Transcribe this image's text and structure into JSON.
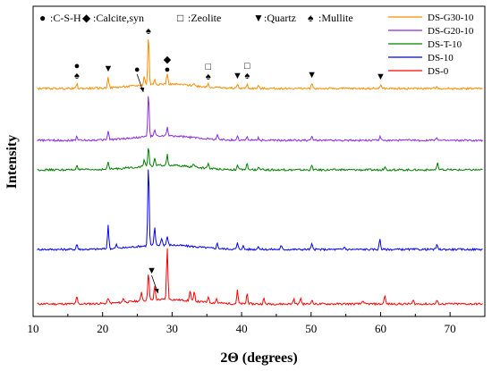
{
  "chart_data": {
    "type": "line",
    "title": "",
    "xlabel": "2Θ (degrees)",
    "ylabel": "Intensity",
    "xlim": [
      10,
      75
    ],
    "x_ticks": [
      "10",
      "20",
      "30",
      "40",
      "50",
      "60",
      "70"
    ],
    "y_ticks_shown": false,
    "grid": false,
    "legend_position": "top-right",
    "legend_order": [
      "DS-G30-10",
      "DS-G20-10",
      "DS-T-10",
      "DS-10",
      "DS-0"
    ],
    "series": [
      {
        "name": "DS-0",
        "color": "#ff0000",
        "baseline": 0,
        "peaks": [
          {
            "x": 16.3,
            "h": 8
          },
          {
            "x": 20.8,
            "h": 6
          },
          {
            "x": 23.0,
            "h": 5
          },
          {
            "x": 25.6,
            "h": 10
          },
          {
            "x": 26.6,
            "h": 32
          },
          {
            "x": 27.5,
            "h": 16
          },
          {
            "x": 29.3,
            "h": 58
          },
          {
            "x": 32.6,
            "h": 12
          },
          {
            "x": 33.2,
            "h": 10
          },
          {
            "x": 35.2,
            "h": 7
          },
          {
            "x": 36.4,
            "h": 5
          },
          {
            "x": 39.4,
            "h": 15
          },
          {
            "x": 40.8,
            "h": 12
          },
          {
            "x": 43.2,
            "h": 6
          },
          {
            "x": 47.5,
            "h": 6
          },
          {
            "x": 48.5,
            "h": 7
          },
          {
            "x": 50.1,
            "h": 5
          },
          {
            "x": 57.4,
            "h": 4
          },
          {
            "x": 60.6,
            "h": 10
          },
          {
            "x": 64.7,
            "h": 4
          },
          {
            "x": 68.1,
            "h": 4
          }
        ]
      },
      {
        "name": "DS-10",
        "color": "#0000ff",
        "baseline": 61,
        "peaks": [
          {
            "x": 16.3,
            "h": 6
          },
          {
            "x": 20.8,
            "h": 26
          },
          {
            "x": 22.0,
            "h": 4
          },
          {
            "x": 26.6,
            "h": 92
          },
          {
            "x": 27.5,
            "h": 20
          },
          {
            "x": 28.5,
            "h": 8
          },
          {
            "x": 29.3,
            "h": 10
          },
          {
            "x": 36.5,
            "h": 6
          },
          {
            "x": 39.4,
            "h": 7
          },
          {
            "x": 40.2,
            "h": 4
          },
          {
            "x": 42.4,
            "h": 4
          },
          {
            "x": 45.7,
            "h": 4
          },
          {
            "x": 50.1,
            "h": 6
          },
          {
            "x": 54.8,
            "h": 3
          },
          {
            "x": 59.9,
            "h": 12
          },
          {
            "x": 68.1,
            "h": 5
          }
        ]
      },
      {
        "name": "DS-T-10",
        "color": "#008000",
        "baseline": 150,
        "peaks": [
          {
            "x": 16.3,
            "h": 6
          },
          {
            "x": 20.8,
            "h": 8
          },
          {
            "x": 26.0,
            "h": 8
          },
          {
            "x": 26.6,
            "h": 22
          },
          {
            "x": 27.5,
            "h": 8
          },
          {
            "x": 29.3,
            "h": 12
          },
          {
            "x": 33.1,
            "h": 4
          },
          {
            "x": 35.2,
            "h": 6
          },
          {
            "x": 39.4,
            "h": 5
          },
          {
            "x": 40.8,
            "h": 7
          },
          {
            "x": 42.5,
            "h": 3
          },
          {
            "x": 50.1,
            "h": 5
          },
          {
            "x": 60.6,
            "h": 4
          },
          {
            "x": 68.2,
            "h": 7
          }
        ]
      },
      {
        "name": "DS-G20-10",
        "color": "#8a2be2",
        "baseline": 183,
        "peaks": [
          {
            "x": 16.3,
            "h": 5
          },
          {
            "x": 20.8,
            "h": 10
          },
          {
            "x": 26.6,
            "h": 48
          },
          {
            "x": 27.5,
            "h": 8
          },
          {
            "x": 29.3,
            "h": 10
          },
          {
            "x": 36.5,
            "h": 5
          },
          {
            "x": 39.4,
            "h": 5
          },
          {
            "x": 40.8,
            "h": 4
          },
          {
            "x": 42.4,
            "h": 3
          },
          {
            "x": 50.1,
            "h": 5
          },
          {
            "x": 59.9,
            "h": 4
          },
          {
            "x": 68.1,
            "h": 4
          }
        ]
      },
      {
        "name": "DS-G30-10",
        "color": "#ff8c00",
        "baseline": 241,
        "peaks": [
          {
            "x": 16.3,
            "h": 5
          },
          {
            "x": 20.8,
            "h": 13
          },
          {
            "x": 26.0,
            "h": 10
          },
          {
            "x": 26.6,
            "h": 55
          },
          {
            "x": 27.5,
            "h": 6
          },
          {
            "x": 29.3,
            "h": 12
          },
          {
            "x": 33.1,
            "h": 3
          },
          {
            "x": 35.2,
            "h": 4
          },
          {
            "x": 39.4,
            "h": 5
          },
          {
            "x": 40.8,
            "h": 5
          },
          {
            "x": 42.4,
            "h": 3
          },
          {
            "x": 50.1,
            "h": 6
          },
          {
            "x": 60.0,
            "h": 4
          },
          {
            "x": 68.1,
            "h": 3
          }
        ]
      }
    ],
    "phase_legend": [
      {
        "symbol": "●",
        "label": ":C-S-H"
      },
      {
        "symbol": "◆",
        "label": ":Calcite,syn"
      },
      {
        "symbol": "□",
        "label": ":Zeolite"
      },
      {
        "symbol": "▼",
        "label": ":Quartz"
      },
      {
        "symbol": "♠",
        "label": ":Mullite"
      }
    ],
    "annotations": [
      {
        "x": 16.3,
        "symbols": [
          "●",
          "♠"
        ]
      },
      {
        "x": 20.8,
        "symbols": [
          "▼"
        ]
      },
      {
        "x": 25.6,
        "symbols": [
          "●"
        ],
        "arrow": true
      },
      {
        "x": 26.6,
        "symbols": [
          "♠"
        ]
      },
      {
        "x": 29.3,
        "symbols": [
          "◆",
          "●"
        ]
      },
      {
        "x": 35.2,
        "symbols": [
          "□",
          "♠"
        ]
      },
      {
        "x": 39.4,
        "symbols": [
          "▼"
        ]
      },
      {
        "x": 40.8,
        "symbols": [
          "□",
          "♠"
        ]
      },
      {
        "x": 50.1,
        "symbols": [
          "▼"
        ]
      },
      {
        "x": 60.0,
        "symbols": [
          "▼"
        ]
      },
      {
        "x": 27.7,
        "symbols": [
          "▼"
        ],
        "arrow": true,
        "series": "DS-0"
      }
    ]
  }
}
